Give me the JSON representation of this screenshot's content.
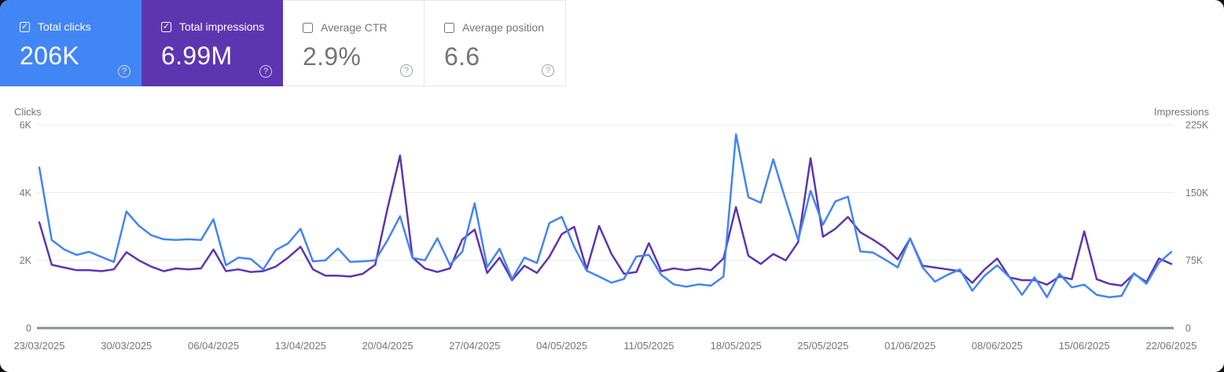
{
  "help_icon": "?",
  "check_glyph": "✓",
  "cards": [
    {
      "label": "Total clicks",
      "value": "206K",
      "checked": true,
      "background": "#4285f4",
      "text_color": "#ffffff"
    },
    {
      "label": "Total impressions",
      "value": "6.99M",
      "checked": true,
      "background": "#5e35b1",
      "text_color": "#ffffff"
    },
    {
      "label": "Average CTR",
      "value": "2.9%",
      "checked": false,
      "background": "#ffffff",
      "text_color": "#757575"
    },
    {
      "label": "Average position",
      "value": "6.6",
      "checked": false,
      "background": "#ffffff",
      "text_color": "#757575"
    }
  ],
  "chart_data": {
    "type": "line",
    "grid": true,
    "left_axis": {
      "label": "Clicks",
      "ticks": [
        "0",
        "2K",
        "4K",
        "6K"
      ],
      "max": 6000
    },
    "right_axis": {
      "label": "Impressions",
      "ticks": [
        "0",
        "75K",
        "150K",
        "225K"
      ],
      "max": 225000
    },
    "x_tick_labels": [
      "23/03/2025",
      "30/03/2025",
      "06/04/2025",
      "13/04/2025",
      "20/04/2025",
      "27/04/2025",
      "04/05/2025",
      "11/05/2025",
      "18/05/2025",
      "25/05/2025",
      "01/06/2025",
      "08/06/2025",
      "15/06/2025",
      "22/06/2025"
    ],
    "x_tick_day_indices": [
      0,
      7,
      14,
      21,
      28,
      35,
      42,
      49,
      56,
      63,
      70,
      77,
      84,
      91
    ],
    "series": [
      {
        "name": "Total impressions",
        "axis": "right",
        "color": "#5e35b1",
        "values": [
          117000,
          70000,
          67000,
          64000,
          64000,
          63000,
          65000,
          84000,
          75000,
          68000,
          63000,
          66000,
          65000,
          66000,
          87000,
          63000,
          65000,
          62000,
          63000,
          68000,
          78000,
          90000,
          65000,
          58000,
          58000,
          57000,
          60000,
          70000,
          133000,
          191000,
          78000,
          66000,
          62000,
          66000,
          98000,
          109000,
          61000,
          78000,
          53000,
          69000,
          61000,
          79000,
          104000,
          112000,
          65000,
          113000,
          82000,
          60000,
          62000,
          94000,
          63000,
          66000,
          64000,
          66000,
          64000,
          77000,
          134000,
          80000,
          71000,
          82000,
          75000,
          95000,
          188000,
          101000,
          110000,
          123000,
          106000,
          98000,
          89000,
          76000,
          99000,
          69000,
          67000,
          65000,
          63000,
          50000,
          65000,
          77000,
          56000,
          53000,
          53000,
          48000,
          57000,
          54000,
          107000,
          54000,
          49000,
          47000,
          60000,
          51000,
          77000,
          71000
        ]
      },
      {
        "name": "Total clicks",
        "axis": "left",
        "color": "#4285f4",
        "values": [
          4740,
          2600,
          2320,
          2160,
          2250,
          2100,
          1950,
          3440,
          3020,
          2740,
          2620,
          2600,
          2620,
          2600,
          3210,
          1850,
          2080,
          2040,
          1730,
          2300,
          2500,
          2930,
          1970,
          2000,
          2350,
          1950,
          1970,
          2000,
          2600,
          3300,
          2070,
          2000,
          2650,
          1870,
          2250,
          3680,
          1800,
          2340,
          1450,
          2080,
          1920,
          3100,
          3280,
          2400,
          1690,
          1520,
          1340,
          1450,
          2110,
          2160,
          1570,
          1290,
          1220,
          1290,
          1250,
          1520,
          5720,
          3860,
          3700,
          4980,
          3770,
          2600,
          4050,
          3050,
          3740,
          3880,
          2260,
          2230,
          2020,
          1790,
          2650,
          1790,
          1370,
          1570,
          1730,
          1100,
          1550,
          1850,
          1500,
          980,
          1500,
          910,
          1600,
          1200,
          1280,
          980,
          910,
          950,
          1620,
          1310,
          1930,
          2250
        ]
      }
    ]
  }
}
